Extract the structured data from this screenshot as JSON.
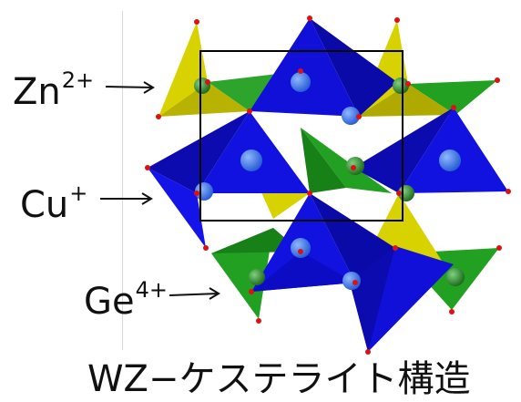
{
  "labels": {
    "zn": {
      "symbol": "Zn",
      "charge": "2+"
    },
    "cu": {
      "symbol": "Cu",
      "charge": "+"
    },
    "ge": {
      "symbol": "Ge",
      "charge": "4+"
    }
  },
  "caption": "WZ−ケステライト構造",
  "colors": {
    "zn_tetrahedra": "#d8d200",
    "cu_tetrahedra": "#1010d8",
    "ge_tetrahedra": "#1f9a1f",
    "vertex": "#e01010",
    "unit_cell": "#000000"
  }
}
